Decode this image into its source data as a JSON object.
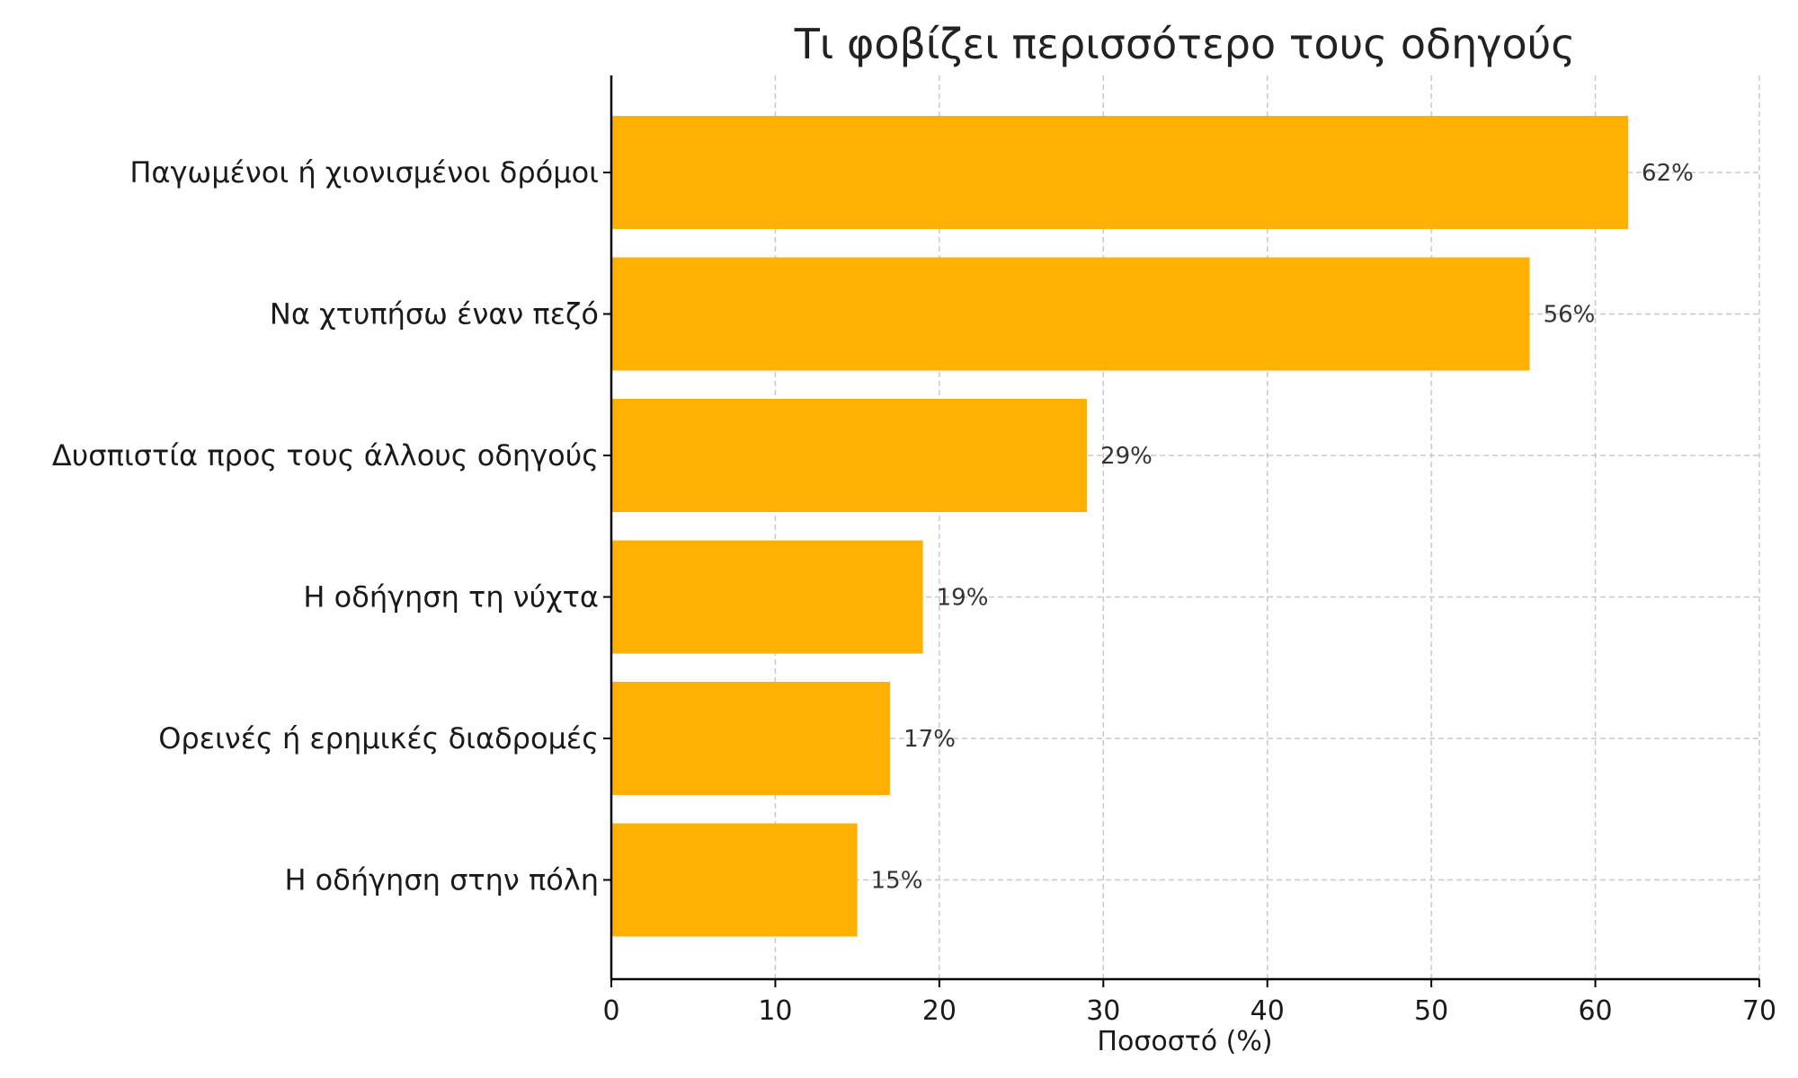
{
  "chart_data": {
    "type": "bar",
    "orientation": "horizontal",
    "title": "Τι φοβίζει περισσότερο τους οδηγούς",
    "xlabel": "Ποσοστό (%)",
    "ylabel": "",
    "categories": [
      "Παγωμένοι ή χιονισμένοι δρόμοι",
      "Να χτυπήσω έναν πεζό",
      "Δυσπιστία προς τους άλλους οδηγούς",
      "Η οδήγηση τη νύχτα",
      "Ορεινές ή ερημικές διαδρομές",
      "Η οδήγηση στην πόλη"
    ],
    "values": [
      62,
      56,
      29,
      19,
      17,
      15
    ],
    "value_labels": [
      "62%",
      "56%",
      "29%",
      "19%",
      "17%",
      "15%"
    ],
    "xlim": [
      0,
      70
    ],
    "xticks": [
      0,
      10,
      20,
      30,
      40,
      50,
      60,
      70
    ],
    "xtick_labels": [
      "0",
      "10",
      "20",
      "30",
      "40",
      "50",
      "60",
      "70"
    ],
    "grid": true,
    "legend": "none",
    "bar_color": "#FFB000"
  }
}
